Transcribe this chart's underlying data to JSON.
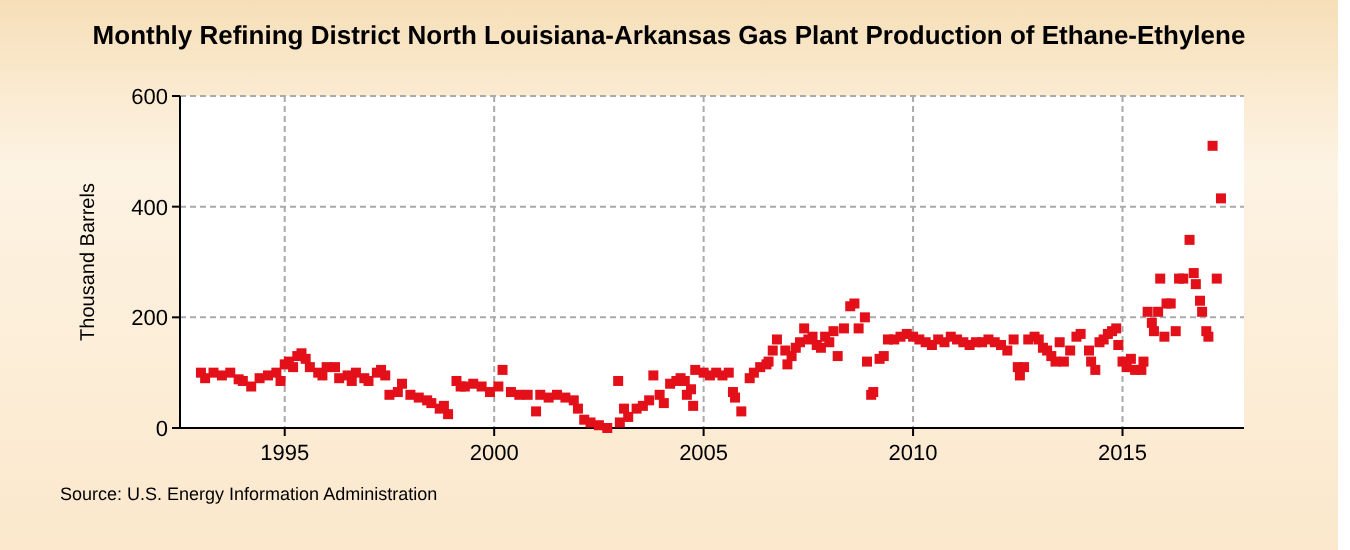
{
  "chart_data": {
    "type": "scatter",
    "title": "Monthly Refining District North Louisiana-Arkansas Gas Plant Production of Ethane-Ethylene",
    "ylabel": "Thousand Barrels",
    "annotations": [
      "Source: U.S. Energy Information Administration"
    ],
    "xlim": [
      1992.5,
      2017.9
    ],
    "xticks": [
      1995,
      2000,
      2005,
      2010,
      2015
    ],
    "ylim": [
      0,
      600
    ],
    "yticks": [
      0,
      200,
      400,
      600
    ],
    "grid": true,
    "marker": "square",
    "series": [
      {
        "color": "#e3101a",
        "x": [
          1993.0,
          1993.1,
          1993.3,
          1993.5,
          1993.7,
          1993.9,
          1994.0,
          1994.2,
          1994.4,
          1994.6,
          1994.8,
          1994.9,
          1995.0,
          1995.1,
          1995.2,
          1995.3,
          1995.4,
          1995.5,
          1995.6,
          1995.8,
          1995.9,
          1996.0,
          1996.2,
          1996.3,
          1996.5,
          1996.6,
          1996.7,
          1996.9,
          1997.0,
          1997.2,
          1997.3,
          1997.4,
          1997.5,
          1997.7,
          1997.8,
          1998.0,
          1998.2,
          1998.4,
          1998.5,
          1998.7,
          1998.8,
          1998.9,
          1999.1,
          1999.2,
          1999.3,
          1999.5,
          1999.7,
          1999.9,
          2000.1,
          2000.2,
          2000.4,
          2000.6,
          2000.8,
          2001.0,
          2001.1,
          2001.3,
          2001.5,
          2001.7,
          2001.9,
          2002.0,
          2002.15,
          2002.3,
          2002.5,
          2002.7,
          2002.96,
          2003.0,
          2003.1,
          2003.2,
          2003.4,
          2003.55,
          2003.7,
          2003.8,
          2003.95,
          2004.05,
          2004.2,
          2004.35,
          2004.45,
          2004.55,
          2004.6,
          2004.7,
          2004.75,
          2004.8,
          2005.0,
          2005.15,
          2005.3,
          2005.45,
          2005.6,
          2005.7,
          2005.75,
          2005.9,
          2006.1,
          2006.2,
          2006.35,
          2006.5,
          2006.55,
          2006.65,
          2006.75,
          2006.95,
          2007.0,
          2007.1,
          2007.2,
          2007.3,
          2007.4,
          2007.5,
          2007.6,
          2007.7,
          2007.8,
          2007.9,
          2008.0,
          2008.1,
          2008.2,
          2008.35,
          2008.5,
          2008.6,
          2008.7,
          2008.85,
          2008.9,
          2009.0,
          2009.05,
          2009.2,
          2009.3,
          2009.4,
          2009.55,
          2009.7,
          2009.85,
          2010.0,
          2010.15,
          2010.3,
          2010.45,
          2010.6,
          2010.75,
          2010.9,
          2011.05,
          2011.2,
          2011.35,
          2011.5,
          2011.65,
          2011.8,
          2011.95,
          2012.1,
          2012.25,
          2012.4,
          2012.5,
          2012.55,
          2012.65,
          2012.75,
          2012.9,
          2013.0,
          2013.1,
          2013.2,
          2013.3,
          2013.4,
          2013.5,
          2013.6,
          2013.75,
          2013.9,
          2014.0,
          2014.2,
          2014.25,
          2014.35,
          2014.45,
          2014.55,
          2014.65,
          2014.75,
          2014.85,
          2014.9,
          2015.0,
          2015.1,
          2015.2,
          2015.3,
          2015.45,
          2015.5,
          2015.6,
          2015.7,
          2015.75,
          2015.85,
          2015.9,
          2016.0,
          2016.05,
          2016.15,
          2016.27,
          2016.35,
          2016.45,
          2016.6,
          2016.7,
          2016.75,
          2016.85,
          2016.9,
          2017.0,
          2017.05,
          2017.15,
          2017.25,
          2017.35
        ],
        "values": [
          100,
          90,
          100,
          95,
          100,
          88,
          85,
          75,
          90,
          95,
          100,
          85,
          115,
          120,
          110,
          130,
          135,
          125,
          110,
          100,
          95,
          110,
          110,
          90,
          95,
          85,
          100,
          90,
          85,
          100,
          105,
          95,
          60,
          65,
          80,
          60,
          55,
          50,
          45,
          35,
          40,
          25,
          85,
          75,
          75,
          80,
          75,
          65,
          75,
          105,
          65,
          60,
          60,
          30,
          60,
          55,
          60,
          55,
          50,
          35,
          15,
          10,
          5,
          0,
          85,
          10,
          35,
          20,
          35,
          40,
          50,
          95,
          60,
          45,
          80,
          85,
          90,
          85,
          60,
          70,
          40,
          105,
          100,
          95,
          100,
          95,
          100,
          65,
          55,
          30,
          90,
          100,
          110,
          115,
          120,
          140,
          160,
          140,
          115,
          130,
          145,
          155,
          180,
          160,
          165,
          150,
          145,
          165,
          155,
          175,
          130,
          180,
          220,
          225,
          180,
          200,
          120,
          60,
          65,
          125,
          130,
          160,
          160,
          165,
          170,
          165,
          160,
          155,
          150,
          160,
          155,
          165,
          160,
          155,
          150,
          155,
          155,
          160,
          155,
          150,
          140,
          160,
          110,
          95,
          110,
          160,
          165,
          160,
          145,
          140,
          130,
          120,
          155,
          120,
          140,
          165,
          170,
          140,
          120,
          105,
          155,
          160,
          170,
          175,
          180,
          150,
          120,
          110,
          125,
          105,
          105,
          120,
          210,
          190,
          175,
          210,
          270,
          165,
          225,
          225,
          175,
          270,
          270,
          340,
          280,
          260,
          230,
          210,
          175,
          165,
          510,
          270,
          415
        ]
      }
    ]
  }
}
